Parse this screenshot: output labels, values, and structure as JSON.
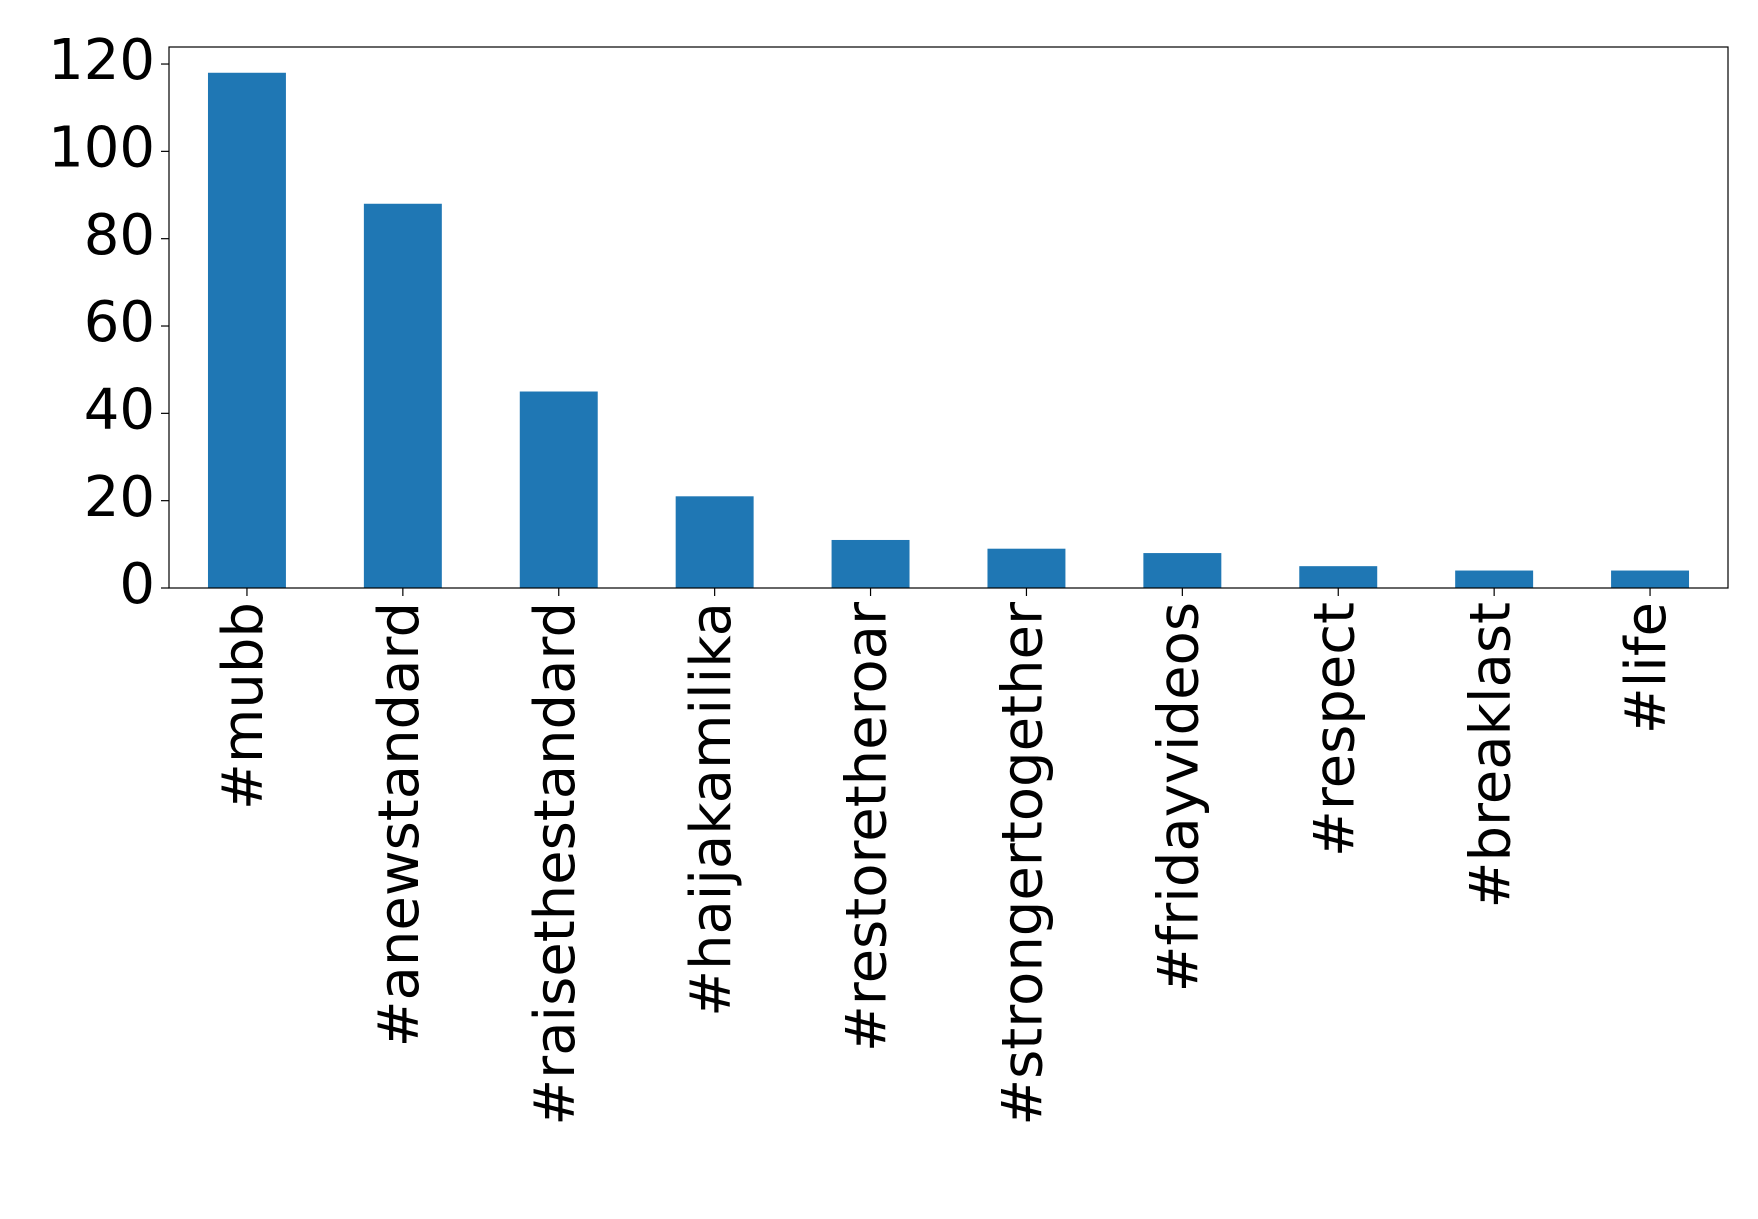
{
  "chart_data": {
    "type": "bar",
    "categories": [
      "#mubb",
      "#anewstandard",
      "#raisethestandard",
      "#haijakamilika",
      "#restoretheroar",
      "#strongertogether",
      "#fridayvideos",
      "#respect",
      "#breaklast",
      "#life"
    ],
    "values": [
      118,
      88,
      45,
      21,
      11,
      9,
      8,
      5,
      4,
      4
    ],
    "color": "#1f77b4",
    "ylim": [
      0,
      123.9
    ],
    "yticks": [
      0,
      20,
      40,
      60,
      80,
      100,
      120
    ],
    "grid": false
  }
}
